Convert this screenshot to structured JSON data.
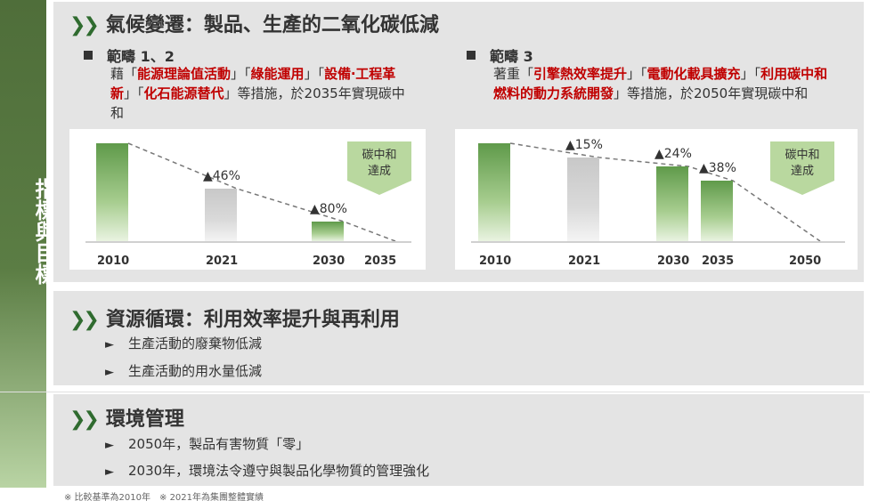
{
  "side_label": "指標與目標",
  "section1": {
    "title": "氣候變遷：製品、生產的二氧化碳低減",
    "scope12": {
      "head": "範疇 1、2",
      "desc_prefix": "藉「",
      "kw1": "能源理論值活動",
      "sep1": "」「",
      "kw2": "綠能運用",
      "sep2": "」「",
      "kw3": "設備‧工程革新",
      "sep3": "」「",
      "kw4": "化石能源替代",
      "desc_suffix": "」等措施，於2035年實現碳中和"
    },
    "scope3": {
      "head": "範疇 3",
      "desc_prefix": "著重「",
      "kw1": "引擎熱效率提升",
      "sep1": "」「",
      "kw2": "電動化載具擴充",
      "sep2": "」「",
      "kw3": "利用碳中和燃料的動力系統開發",
      "desc_suffix": "」等措施，於2050年實現碳中和"
    }
  },
  "chart_data": [
    {
      "type": "bar",
      "categories": [
        "2010",
        "2021",
        "2030",
        "2035"
      ],
      "values": [
        100,
        54,
        20,
        0
      ],
      "labels": [
        "",
        "▲46%",
        "▲80%",
        ""
      ],
      "badge": [
        "碳中和",
        "達成"
      ]
    },
    {
      "type": "bar",
      "categories": [
        "2010",
        "2021",
        "2030",
        "2035",
        "2050"
      ],
      "values": [
        100,
        85,
        76,
        62,
        0
      ],
      "labels": [
        "",
        "▲15%",
        "▲24%",
        "▲38%",
        ""
      ],
      "badge": [
        "碳中和",
        "達成"
      ]
    }
  ],
  "section2": {
    "title": "資源循環：利用效率提升與再利用",
    "items": [
      "生產活動的廢棄物低減",
      "生產活動的用水量低減"
    ]
  },
  "section3": {
    "title": "環境管理",
    "items": [
      "2050年，製品有害物質「零」",
      "2030年，環境法令遵守與製品化學物質的管理強化"
    ]
  },
  "footnote": "※ 比較基準為2010年　※ 2021年為集團整體實績",
  "colors": {
    "accent_green": "#2f6b2f",
    "keyword_red": "#c00000",
    "sidebar": "#5b7d44"
  },
  "icons": {
    "section_marker": "double-chevron-icon",
    "bullet": "triangle-bullet-icon",
    "scope_marker": "square-bullet-icon"
  }
}
